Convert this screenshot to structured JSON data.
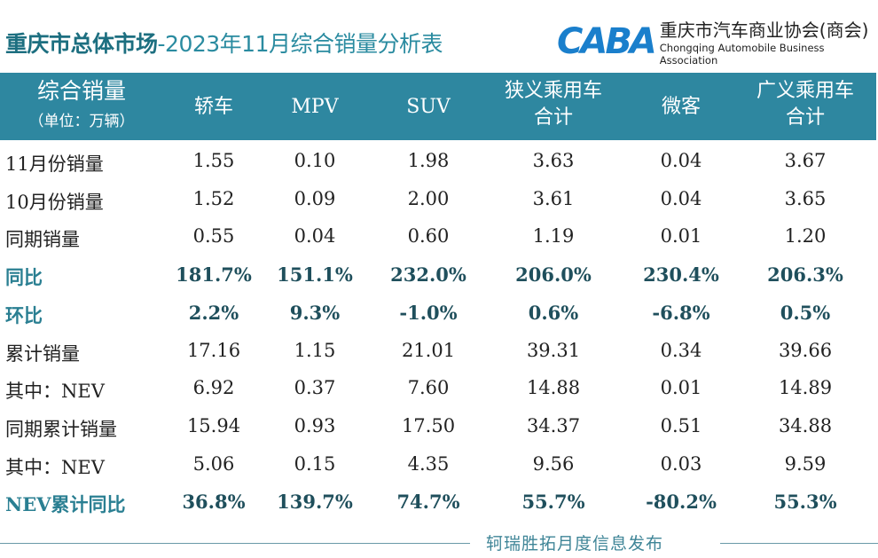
{
  "title": {
    "bold": "重庆市总体市场",
    "rest": "-2023年11月综合销量分析表"
  },
  "logo": {
    "mark": "CABA",
    "cn": "重庆市汽车商业协会(商会)",
    "en": "Chongqing Automobile Business Association"
  },
  "header": {
    "label1": "综合销量",
    "label2": "（单位：万辆）",
    "columns": [
      [
        "轿车"
      ],
      [
        "MPV"
      ],
      [
        "SUV"
      ],
      [
        "狭义乘用车",
        "合计"
      ],
      [
        "微客"
      ],
      [
        "广义乘用车",
        "合计"
      ]
    ]
  },
  "rows": [
    {
      "label": "11月份销量",
      "values": [
        "1.55",
        "0.10",
        "1.98",
        "3.63",
        "0.04",
        "3.67"
      ]
    },
    {
      "label": "10月份销量",
      "values": [
        "1.52",
        "0.09",
        "2.00",
        "3.61",
        "0.04",
        "3.65"
      ]
    },
    {
      "label": "同期销量",
      "values": [
        "0.55",
        "0.04",
        "0.60",
        "1.19",
        "0.01",
        "1.20"
      ]
    },
    {
      "label": "同比",
      "values": [
        "181.7%",
        "151.1%",
        "232.0%",
        "206.0%",
        "230.4%",
        "206.3%"
      ],
      "highlight": true
    },
    {
      "label": "环比",
      "values": [
        "2.2%",
        "9.3%",
        "-1.0%",
        "0.6%",
        "-6.8%",
        "0.5%"
      ],
      "highlight": true
    },
    {
      "label": "累计销量",
      "values": [
        "17.16",
        "1.15",
        "21.01",
        "39.31",
        "0.34",
        "39.66"
      ]
    },
    {
      "label": "其中：NEV",
      "values": [
        "6.92",
        "0.37",
        "7.60",
        "14.88",
        "0.01",
        "14.89"
      ]
    },
    {
      "label": "同期累计销量",
      "values": [
        "15.94",
        "0.93",
        "17.50",
        "34.37",
        "0.51",
        "34.88"
      ]
    },
    {
      "label": "其中：NEV",
      "values": [
        "5.06",
        "0.15",
        "4.35",
        "9.56",
        "0.03",
        "9.59"
      ]
    },
    {
      "label": "NEV累计同比",
      "values": [
        "36.8%",
        "139.7%",
        "74.7%",
        "55.7%",
        "-80.2%",
        "55.3%"
      ],
      "highlight": true
    }
  ],
  "footer": "轲瑞胜拓月度信息发布",
  "colors": {
    "header_bg": "#2e87a0",
    "highlight_label": "#2a7f92",
    "highlight_value": "#1f4f5c"
  }
}
